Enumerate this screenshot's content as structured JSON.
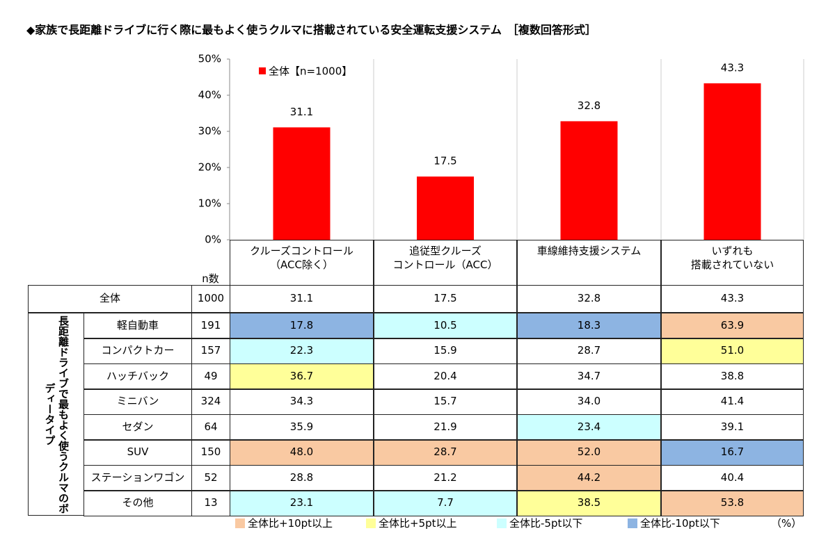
{
  "chart_data": {
    "type": "bar",
    "title": "◆家族で長距離ドライブに行く際に最もよく使うクルマに搭載されている安全運転支援システム　［複数回答形式］",
    "categories": [
      "クルーズコントロール\n（ACC除く）",
      "追従型クルーズ\nコントロール（ACC）",
      "車線維持支援システム",
      "いずれも\n搭載されていない"
    ],
    "series": [
      {
        "name": "全体【n=1000】",
        "color": "#ff0000",
        "values": [
          31.1,
          17.5,
          32.8,
          43.3
        ]
      }
    ],
    "ylim": [
      0,
      50
    ],
    "yticks": [
      {
        "value": 0,
        "label": "0%"
      },
      {
        "value": 10,
        "label": "10%"
      },
      {
        "value": 20,
        "label": "20%"
      },
      {
        "value": 30,
        "label": "30%"
      },
      {
        "value": 40,
        "label": "40%"
      },
      {
        "value": 50,
        "label": "50%"
      }
    ],
    "legend": "top-left"
  },
  "table": {
    "n_header": "n数",
    "group_label": "長距離ドライブで最もよく使うクルマのボディータイプ",
    "total": {
      "name": "全体",
      "n": 1000,
      "cells": [
        "31.1",
        "17.5",
        "32.8",
        "43.3"
      ]
    },
    "rows": [
      {
        "name": "軽自動車",
        "n": 191,
        "cells": [
          "17.8",
          "10.5",
          "18.3",
          "63.9"
        ],
        "colors": [
          "#8db4e2",
          "#ccffff",
          "#8db4e2",
          "#f9c9a2"
        ]
      },
      {
        "name": "コンパクトカー",
        "n": 157,
        "cells": [
          "22.3",
          "15.9",
          "28.7",
          "51.0"
        ],
        "colors": [
          "#ccffff",
          null,
          null,
          "#ffff99"
        ]
      },
      {
        "name": "ハッチバック",
        "n": 49,
        "cells": [
          "36.7",
          "20.4",
          "34.7",
          "38.8"
        ],
        "colors": [
          "#ffff99",
          null,
          null,
          null
        ]
      },
      {
        "name": "ミニバン",
        "n": 324,
        "cells": [
          "34.3",
          "15.7",
          "34.0",
          "41.4"
        ],
        "colors": [
          null,
          null,
          null,
          null
        ]
      },
      {
        "name": "セダン",
        "n": 64,
        "cells": [
          "35.9",
          "21.9",
          "23.4",
          "39.1"
        ],
        "colors": [
          null,
          null,
          "#ccffff",
          null
        ]
      },
      {
        "name": "SUV",
        "n": 150,
        "cells": [
          "48.0",
          "28.7",
          "52.0",
          "16.7"
        ],
        "colors": [
          "#f9c9a2",
          "#f9c9a2",
          "#f9c9a2",
          "#8db4e2"
        ]
      },
      {
        "name": "ステーションワゴン",
        "n": 52,
        "cells": [
          "28.8",
          "21.2",
          "44.2",
          "40.4"
        ],
        "colors": [
          null,
          null,
          "#f9c9a2",
          null
        ]
      },
      {
        "name": "その他",
        "n": 13,
        "cells": [
          "23.1",
          "7.7",
          "38.5",
          "53.8"
        ],
        "colors": [
          "#ccffff",
          "#ccffff",
          "#ffff99",
          "#f9c9a2"
        ]
      }
    ],
    "legend": [
      {
        "label": "全体比+10pt以上",
        "color": "#f9c9a2"
      },
      {
        "label": "全体比+5pt以上",
        "color": "#ffff99"
      },
      {
        "label": "全体比-5pt以下",
        "color": "#ccffff"
      },
      {
        "label": "全体比-10pt以下",
        "color": "#8db4e2"
      }
    ],
    "unit": "（%）"
  }
}
